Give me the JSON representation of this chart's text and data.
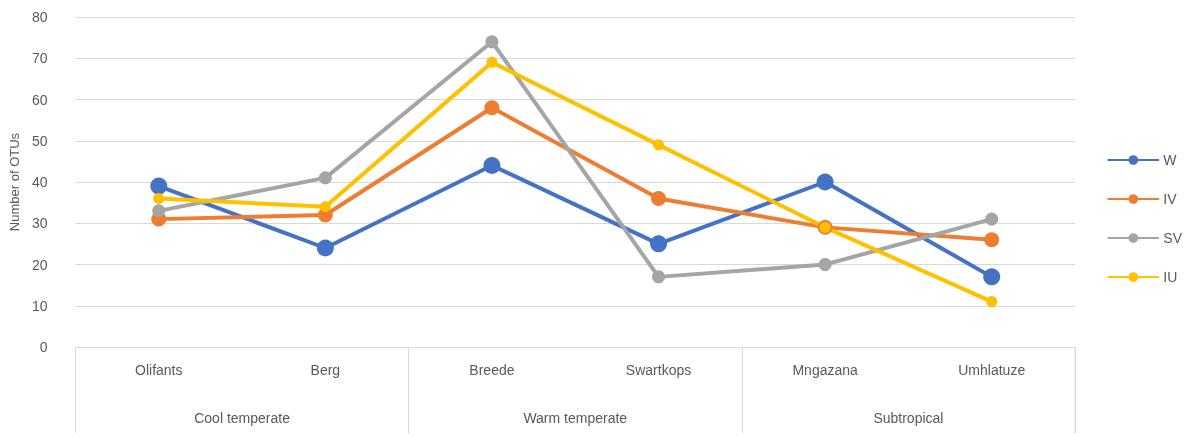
{
  "chart_data": {
    "type": "line",
    "ylabel": "Number of OTUs",
    "categories": [
      "Olifants",
      "Berg",
      "Breede",
      "Swartkops",
      "Mngazana",
      "Umhlatuze"
    ],
    "series": [
      {
        "name": "W",
        "color": "#4472c4",
        "values": [
          39,
          24,
          44,
          25,
          40,
          17
        ]
      },
      {
        "name": "IV",
        "color": "#ed7d31",
        "values": [
          31,
          32,
          58,
          36,
          29,
          26
        ]
      },
      {
        "name": "SV",
        "color": "#a5a5a5",
        "values": [
          33,
          41,
          74,
          17,
          20,
          31
        ]
      },
      {
        "name": "IU",
        "color": "#ffc000",
        "values": [
          36,
          34,
          69,
          49,
          29,
          11
        ]
      }
    ],
    "annotations": [
      "Cool temperate",
      "Warm temperate",
      "Subtropical"
    ],
    "ylim": [
      0,
      80
    ],
    "yticks": [
      0,
      10,
      20,
      30,
      40,
      50,
      60,
      70,
      80
    ],
    "grid": "y",
    "legend": "right",
    "marker": "circle",
    "line_style": "solid"
  }
}
